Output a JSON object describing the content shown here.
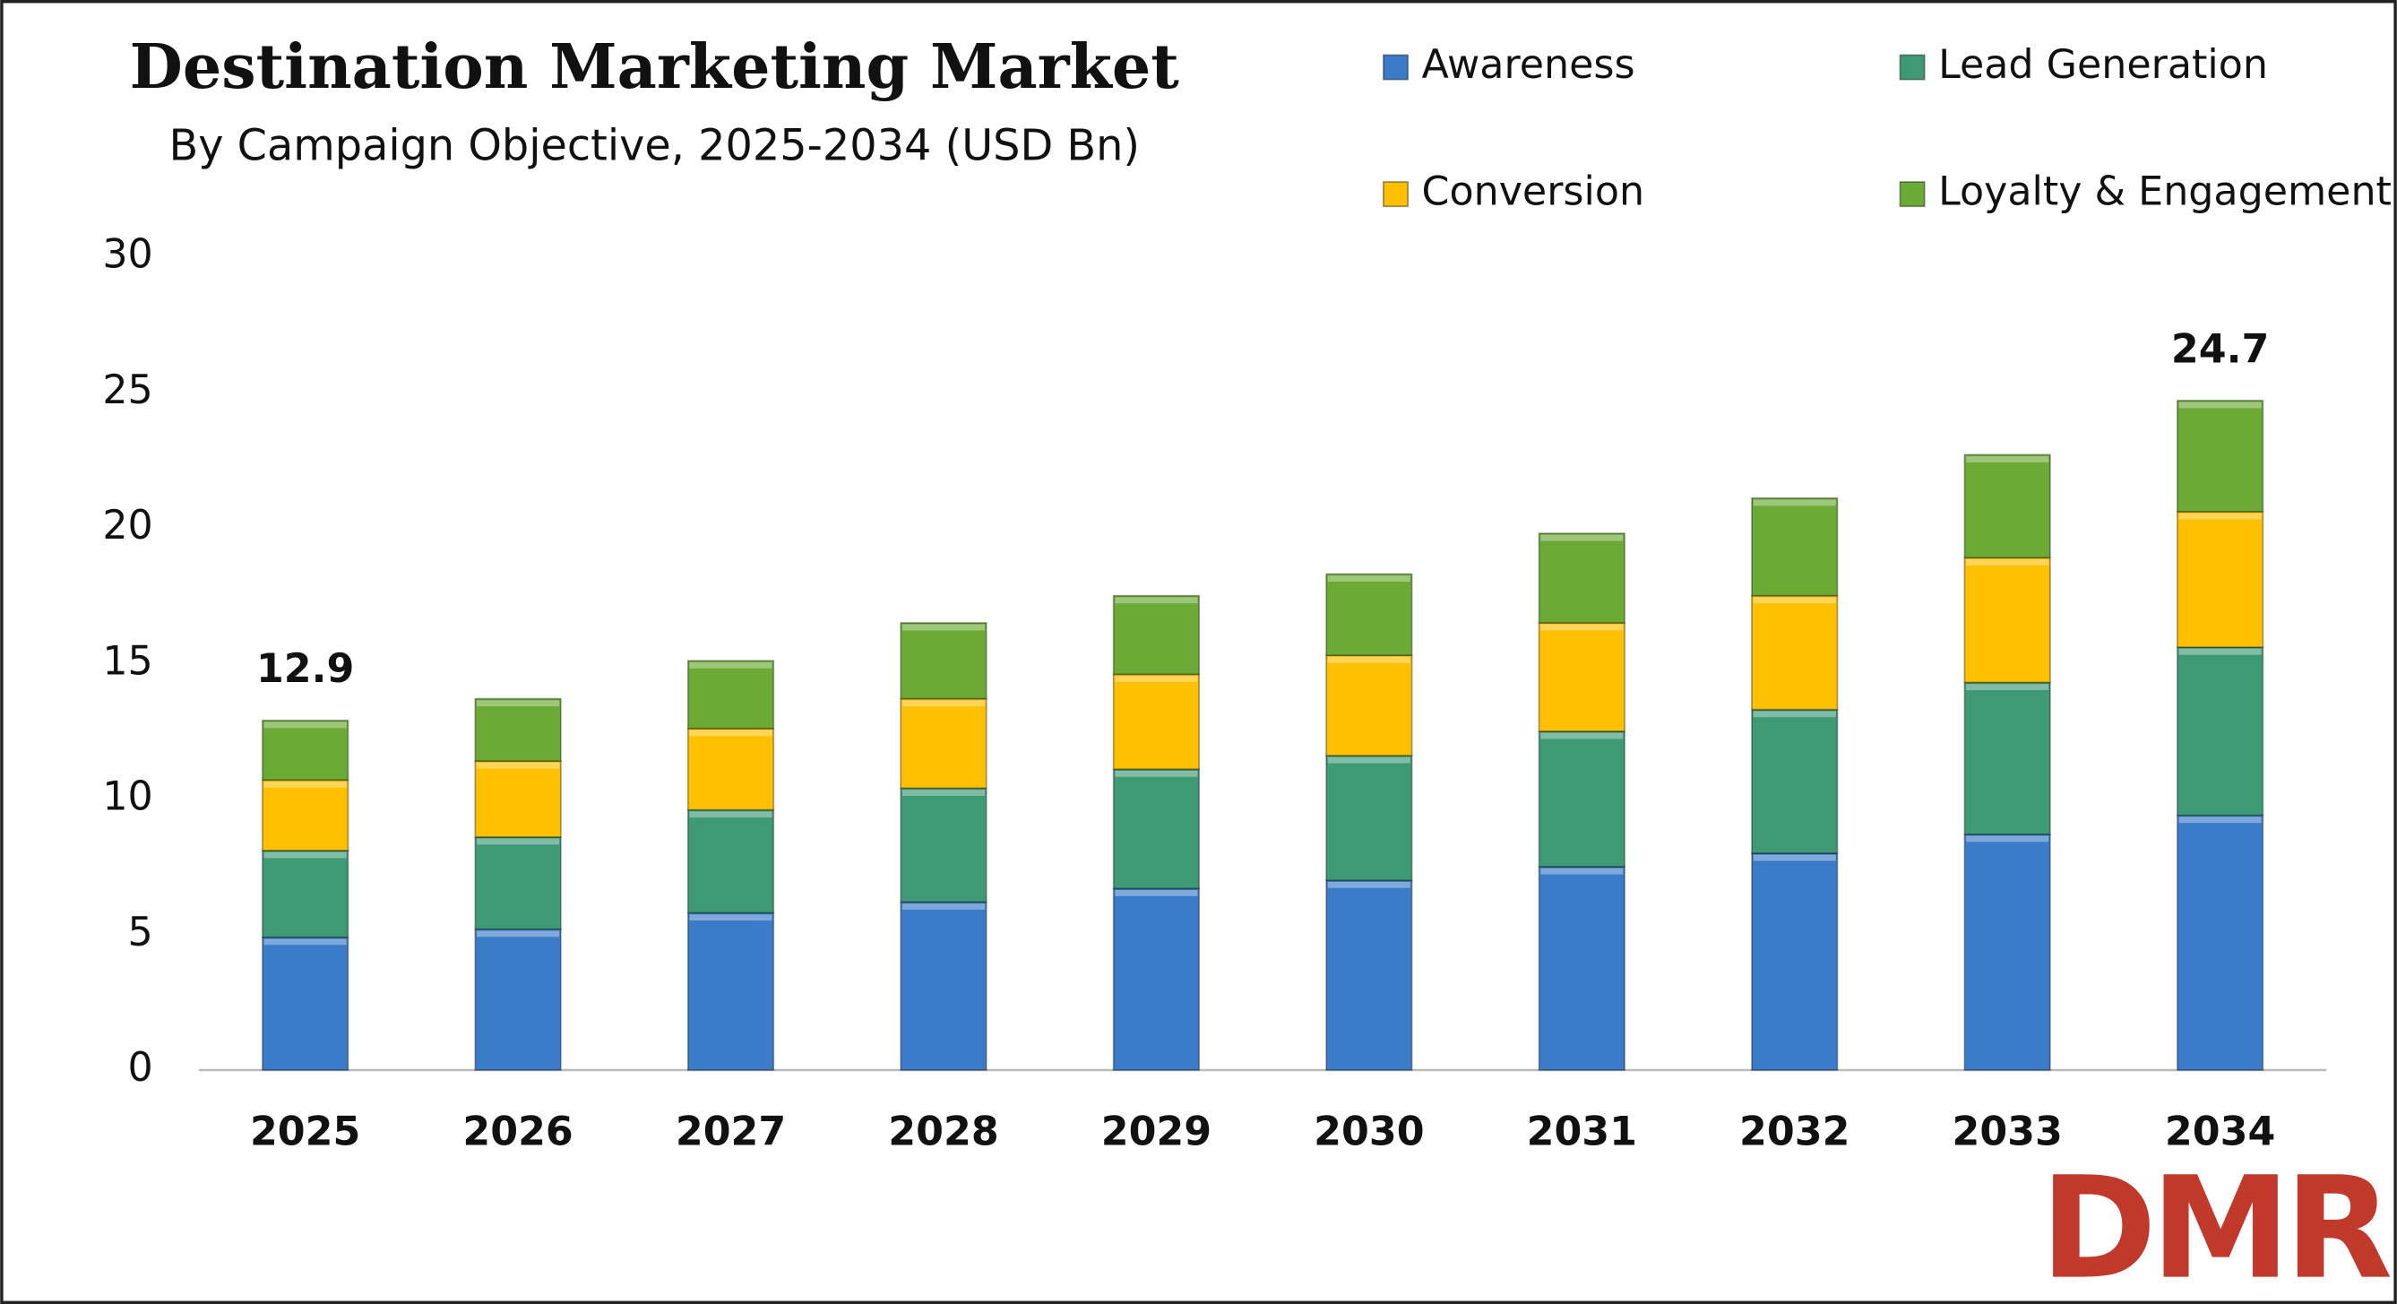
{
  "chart_data": {
    "type": "stacked_bar",
    "title": "Destination Marketing Market",
    "subtitle": "By Campaign Objective, 2025-2034 (USD Bn)",
    "categories": [
      "2025",
      "2026",
      "2027",
      "2028",
      "2029",
      "2030",
      "2031",
      "2032",
      "2033",
      "2034"
    ],
    "series": [
      {
        "name": "Awareness",
        "color": "#3a7cc7",
        "values": [
          4.9,
          5.2,
          5.8,
          6.2,
          6.7,
          7.0,
          7.5,
          8.0,
          8.7,
          9.4
        ]
      },
      {
        "name": "Lead Generation",
        "color": "#3e9a75",
        "values": [
          3.2,
          3.4,
          3.8,
          4.2,
          4.4,
          4.6,
          5.0,
          5.3,
          5.6,
          6.2
        ]
      },
      {
        "name": "Conversion",
        "color": "#ffc000",
        "values": [
          2.6,
          2.8,
          3.0,
          3.3,
          3.5,
          3.7,
          4.0,
          4.2,
          4.6,
          5.0
        ]
      },
      {
        "name": "Loyalty & Engagement",
        "color": "#6aaa35",
        "values": [
          2.2,
          2.3,
          2.5,
          2.8,
          2.9,
          3.0,
          3.3,
          3.6,
          3.8,
          4.1
        ]
      }
    ],
    "total_labels": [
      {
        "category": "2025",
        "value": 12.9
      },
      {
        "category": "2034",
        "value": 24.7
      }
    ],
    "ylim": [
      0,
      30
    ],
    "yticks": [
      0,
      5,
      10,
      15,
      20,
      25,
      30
    ],
    "legend": "top-right",
    "logo": "DMR"
  }
}
